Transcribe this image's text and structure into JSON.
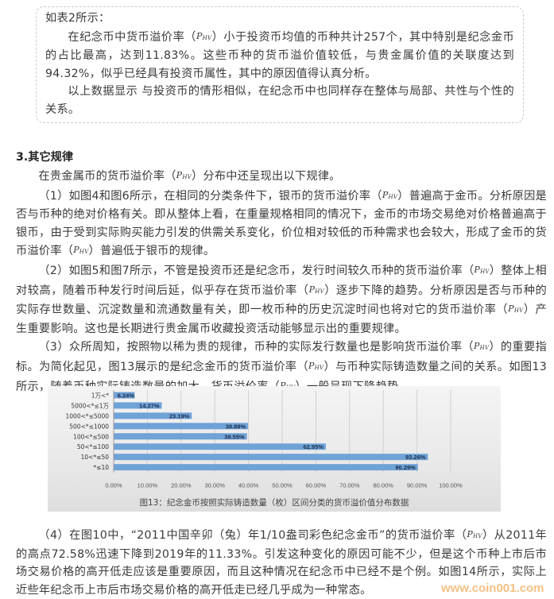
{
  "symbol": {
    "base": "P",
    "sub": "HV"
  },
  "box": {
    "paragraphs": [
      {
        "indent": false,
        "segments": [
          "如表2所示："
        ]
      },
      {
        "indent": true,
        "segments": [
          "在纪念币中货币溢价率（",
          "{PHV}",
          "）小于投资币均值的币种共计257个，其中特别是纪念金币的占比最高，达到11.83%。这些币种的货币溢价值较低，与贵金属价值的关联度达到94.32%，似乎已经具有投资币属性，其中的原因值得认真分析。"
        ]
      },
      {
        "indent": true,
        "segments": [
          "以上数据显示 与投资币的情形相似，在纪念币中也同样存在整体与局部、共性与个性的关系。"
        ]
      }
    ]
  },
  "section": {
    "title": "3.其它规律",
    "paragraphs": [
      {
        "indent": true,
        "segments": [
          "在贵金属币的货币溢价率（",
          "{PHV}",
          "）分布中还呈现出以下规律。"
        ]
      },
      {
        "indent": true,
        "segments": [
          "（1）如图4和图6所示，在相同的分类条件下，银币的货币溢价率（",
          "{PHV}",
          "）普遍高于金币。分析原因是否与币种的绝对价格有关。即从整体上看，在重量规格相同的情况下，金币的市场交易绝对价格普遍高于银币，由于受到实际购买能力引发的供需关系变化，价位相对较低的币种需求也会较大，形成了金币的货币溢价率（",
          "{PHV}",
          "）普遍低于银币的规律。"
        ]
      },
      {
        "indent": true,
        "segments": [
          "（2）如图5和图7所示，不管是投资币还是纪念币，发行时间较久币种的货币溢价率（",
          "{PHV}",
          "）整体上相对较高，随着币种发行时间后延，似乎存在货币溢价率（",
          "{PHV}",
          "）逐步下降的趋势。分析原因是否与币种的实际存世数量、沉淀数量和流通数量有关，即一枚币种的历史沉淀时间也将对它的货币溢价率（",
          "{PHV}",
          "）产生重要影响。这也是长期进行贵金属币收藏投资活动能够显示出的重要规律。"
        ]
      },
      {
        "indent": true,
        "segments": [
          "（3）众所周知，按照物以稀为贵的规律，币种的实际发行数量也是影响货币溢价率（",
          "{PHV}",
          "）的重要指标。为简化起见，图13展示的是纪念金币的货币溢价率（",
          "{PHV}",
          "）与币种实际铸造数量之间的关系。如图13所示，随着币种实际铸造数量的加大，货币溢价率（",
          "{PHV}",
          "）一般呈现下降趋势。"
        ]
      }
    ]
  },
  "chart_data": {
    "type": "bar",
    "orientation": "horizontal",
    "title": "图13：纪念金币按照实际铸造数量（枚）区间分类的货币溢价值分布数据",
    "categories": [
      "1万<*",
      "5000<*≤1万",
      "1000<*≤5000",
      "500<*≤1000",
      "100<*≤500",
      "50<*≤100",
      "10<*≤50",
      "*≤10"
    ],
    "values": [
      6.24,
      14.27,
      23.19,
      39.89,
      39.55,
      62.95,
      93.26,
      90.29
    ],
    "data_labels": [
      "6.24%",
      "14.27%",
      "23.19%",
      "39.89%",
      "39.55%",
      "62.95%",
      "93.26%",
      "90.29%"
    ],
    "xlim": [
      0,
      100
    ],
    "x_ticks": [
      "0.00%",
      "10.00%",
      "20.00%",
      "30.00%",
      "40.00%",
      "50.00%",
      "60.00%",
      "70.00%",
      "80.00%",
      "90.00%",
      "100.00%"
    ],
    "grid": true,
    "bar_color": "#6fa3d8",
    "legend": "none"
  },
  "last": {
    "paragraphs": [
      {
        "indent": true,
        "segments": [
          "（4）在图10中，“2011中国辛卯（兔）年1/10盎司彩色纪念金币”的货币溢价率（",
          "{PHV}",
          "）从2011年的高点72.58%迅速下降到2019年的11.33%。引发这种变化的原因可能不少，但是这个币种上市后市场交易价格的高开低走应该是重要原因，而且这种情况在纪念币中已经不是个例。如图14所示，实际上近些年纪念币上市后市场交易价格的高开低走已经几乎成为一种常态。"
        ]
      }
    ]
  },
  "watermark": "www.coin001.com"
}
